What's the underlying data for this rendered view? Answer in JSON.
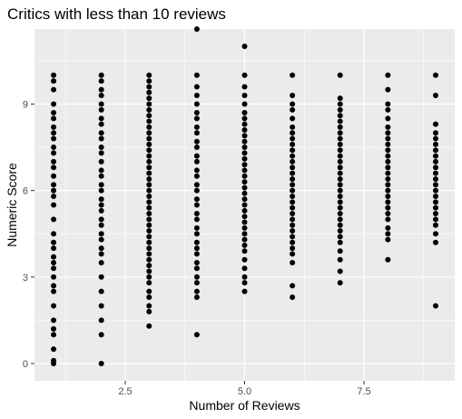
{
  "chart_data": {
    "type": "scatter",
    "title": "Critics with less than 10 reviews",
    "xlabel": "Number of Reviews",
    "ylabel": "Numeric Score",
    "xlim": [
      0.6,
      9.4
    ],
    "ylim": [
      -0.6,
      11.6
    ],
    "x_ticks": [
      2.5,
      5.0,
      7.5
    ],
    "x_tick_labels": [
      "2.5",
      "5.0",
      "7.5"
    ],
    "y_ticks": [
      0,
      3,
      6,
      9
    ],
    "y_tick_labels": [
      "0",
      "3",
      "6",
      "9"
    ],
    "grid": true,
    "panel_background": "#ebebeb",
    "grid_color": "#ffffff",
    "point_color": "#000000",
    "series": [
      {
        "x": 1,
        "y": [
          0,
          0.1,
          0.5,
          1.0,
          1.2,
          1.5,
          2.0,
          2.5,
          2.7,
          3.0,
          3.3,
          3.5,
          3.7,
          4.0,
          4.2,
          4.5,
          5.0,
          5.5,
          5.8,
          6.0,
          6.2,
          6.5,
          6.8,
          7.0,
          7.3,
          7.5,
          7.8,
          8.0,
          8.2,
          8.5,
          8.7,
          9.0,
          9.5,
          9.8,
          10.0
        ]
      },
      {
        "x": 2,
        "y": [
          0,
          1.0,
          1.5,
          2.0,
          2.5,
          3.0,
          3.5,
          3.8,
          4.0,
          4.3,
          4.5,
          4.8,
          5.0,
          5.3,
          5.5,
          5.7,
          6.0,
          6.2,
          6.5,
          6.7,
          7.0,
          7.3,
          7.5,
          7.8,
          8.0,
          8.3,
          8.5,
          8.8,
          9.0,
          9.3,
          9.5,
          9.8,
          10.0
        ]
      },
      {
        "x": 3,
        "y": [
          1.3,
          1.8,
          2.0,
          2.3,
          2.5,
          2.8,
          3.0,
          3.2,
          3.4,
          3.6,
          3.8,
          4.0,
          4.2,
          4.4,
          4.6,
          4.8,
          5.0,
          5.2,
          5.4,
          5.6,
          5.8,
          6.0,
          6.2,
          6.4,
          6.6,
          6.8,
          7.0,
          7.2,
          7.4,
          7.6,
          7.8,
          8.0,
          8.2,
          8.4,
          8.6,
          8.8,
          9.0,
          9.2,
          9.4,
          9.6,
          9.8,
          10.0
        ]
      },
      {
        "x": 4,
        "y": [
          1.0,
          2.3,
          2.5,
          2.8,
          3.0,
          3.3,
          3.5,
          3.8,
          4.0,
          4.2,
          4.5,
          4.7,
          5.0,
          5.2,
          5.5,
          5.7,
          6.0,
          6.2,
          6.5,
          6.7,
          7.0,
          7.2,
          7.5,
          7.7,
          8.0,
          8.2,
          8.5,
          8.7,
          9.0,
          9.3,
          9.6,
          10.0,
          11.6
        ]
      },
      {
        "x": 5,
        "y": [
          2.5,
          2.8,
          3.0,
          3.3,
          3.6,
          3.9,
          4.1,
          4.3,
          4.5,
          4.7,
          4.9,
          5.1,
          5.3,
          5.5,
          5.7,
          5.9,
          6.1,
          6.3,
          6.5,
          6.7,
          6.9,
          7.1,
          7.3,
          7.5,
          7.7,
          7.9,
          8.1,
          8.3,
          8.5,
          8.7,
          9.0,
          9.3,
          9.6,
          10.0,
          11.0
        ]
      },
      {
        "x": 6,
        "y": [
          2.3,
          2.7,
          3.5,
          3.8,
          4.0,
          4.2,
          4.4,
          4.6,
          4.8,
          5.0,
          5.2,
          5.4,
          5.6,
          5.8,
          6.0,
          6.2,
          6.4,
          6.6,
          6.8,
          7.0,
          7.2,
          7.4,
          7.6,
          7.8,
          8.0,
          8.2,
          8.5,
          8.8,
          9.0,
          9.3,
          10.0
        ]
      },
      {
        "x": 7,
        "y": [
          2.8,
          3.2,
          3.6,
          3.9,
          4.2,
          4.4,
          4.6,
          4.8,
          5.0,
          5.2,
          5.4,
          5.6,
          5.8,
          6.0,
          6.2,
          6.4,
          6.6,
          6.8,
          7.0,
          7.2,
          7.4,
          7.6,
          7.8,
          8.0,
          8.2,
          8.4,
          8.6,
          8.8,
          9.0,
          9.2,
          10.0
        ]
      },
      {
        "x": 8,
        "y": [
          3.6,
          4.3,
          4.5,
          4.7,
          5.0,
          5.2,
          5.4,
          5.6,
          5.8,
          6.0,
          6.2,
          6.4,
          6.6,
          6.8,
          7.0,
          7.2,
          7.4,
          7.6,
          7.8,
          8.0,
          8.2,
          8.5,
          8.8,
          9.0,
          9.5,
          10.0
        ]
      },
      {
        "x": 9,
        "y": [
          2.0,
          4.2,
          4.5,
          4.8,
          5.0,
          5.2,
          5.4,
          5.6,
          5.8,
          6.0,
          6.2,
          6.4,
          6.6,
          6.8,
          7.0,
          7.2,
          7.4,
          7.6,
          7.8,
          8.0,
          8.3,
          9.3,
          10.0
        ]
      }
    ]
  }
}
